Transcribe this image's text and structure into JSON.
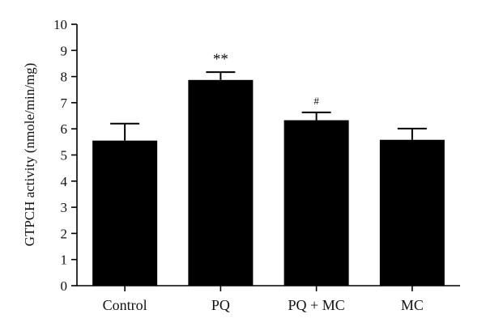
{
  "chart_data": {
    "type": "bar",
    "title": "",
    "xlabel": "",
    "ylabel": "GTPCH activity (nmole/min/mg)",
    "ylim": [
      0,
      10
    ],
    "yticks": [
      0,
      1,
      2,
      3,
      4,
      5,
      6,
      7,
      8,
      9,
      10
    ],
    "categories": [
      "Control",
      "PQ",
      "PQ + MC",
      "MC"
    ],
    "series": [
      {
        "values": [
          5.55,
          7.87,
          6.33,
          5.58
        ],
        "error_upper": [
          0.65,
          0.3,
          0.3,
          0.43
        ],
        "color": "#000000"
      }
    ],
    "annotations": [
      "",
      "**",
      "#",
      ""
    ],
    "grid": false,
    "legend": "none"
  }
}
